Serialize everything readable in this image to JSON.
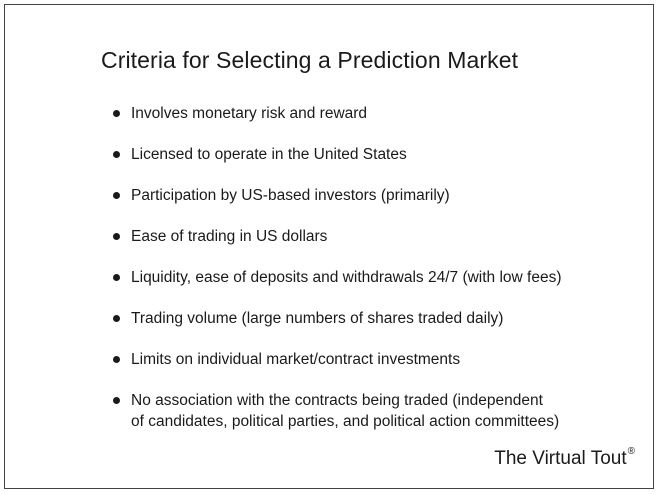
{
  "slide": {
    "title": "Criteria for Selecting a Prediction Market",
    "bullets": [
      {
        "text": "Involves monetary risk and reward"
      },
      {
        "text": "Licensed to operate in the United States"
      },
      {
        "text": "Participation by US-based investors (primarily)"
      },
      {
        "text": "Ease of trading in US dollars"
      },
      {
        "text": "Liquidity, ease of deposits and withdrawals 24/7 (with low fees)"
      },
      {
        "text": "Trading volume (large numbers of shares traded daily)"
      },
      {
        "text": "Limits on individual market/contract investments"
      },
      {
        "text": "No association with the contracts being traded (independent\nof candidates, political parties, and political action committees)"
      }
    ],
    "brand": {
      "name": "The Virtual Tout",
      "mark": "®"
    }
  }
}
